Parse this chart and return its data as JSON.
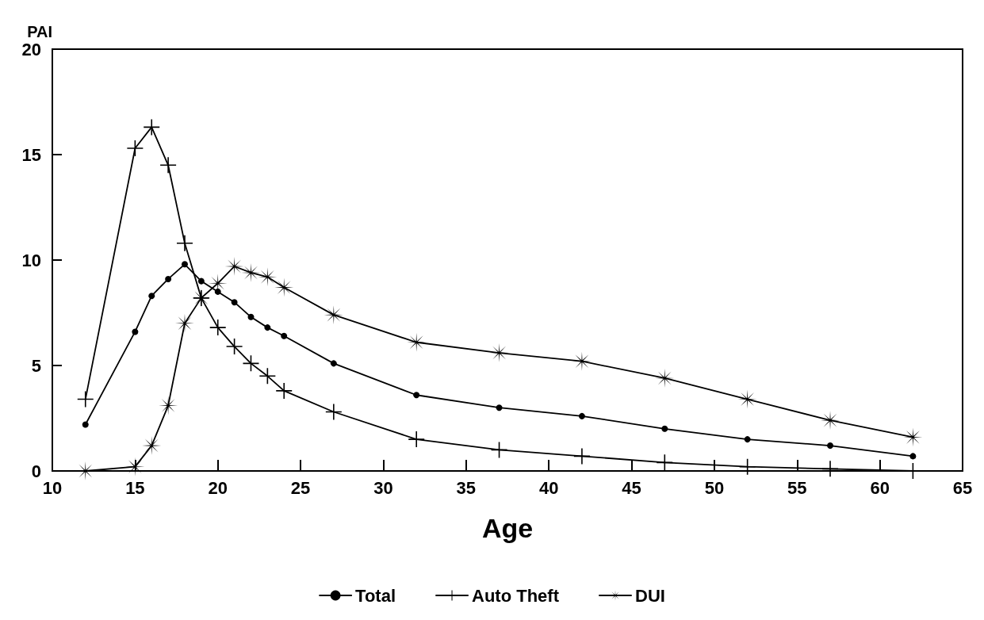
{
  "chart_data": {
    "type": "line",
    "xlabel": "Age",
    "ylabel": "PAI",
    "xlim": [
      10,
      65
    ],
    "xticks": [
      10,
      15,
      20,
      25,
      30,
      35,
      40,
      45,
      50,
      55,
      60,
      65
    ],
    "ylim": [
      0,
      20
    ],
    "yticks": [
      0,
      5,
      10,
      15,
      20
    ],
    "grid": false,
    "legend": "bottom",
    "series": [
      {
        "name": "Total",
        "color": "#000000",
        "marker": "circle",
        "x": [
          12,
          15,
          16,
          17,
          18,
          19,
          20,
          21,
          22,
          23,
          24,
          27,
          32,
          37,
          42,
          47,
          52,
          57,
          62
        ],
        "values": [
          2.2,
          6.6,
          8.3,
          9.1,
          9.8,
          9.0,
          8.5,
          8.0,
          7.3,
          6.8,
          6.4,
          5.1,
          3.6,
          3.0,
          2.6,
          2.0,
          1.5,
          1.2,
          0.7
        ]
      },
      {
        "name": "Auto Theft",
        "color": "#000000",
        "marker": "cross",
        "x": [
          12,
          15,
          16,
          17,
          18,
          19,
          20,
          21,
          22,
          23,
          24,
          27,
          32,
          37,
          42,
          47,
          52,
          57,
          62
        ],
        "values": [
          3.4,
          15.3,
          16.3,
          14.5,
          10.8,
          8.2,
          6.8,
          5.9,
          5.1,
          4.5,
          3.8,
          2.8,
          1.5,
          1.0,
          0.7,
          0.4,
          0.2,
          0.1,
          0.0
        ]
      },
      {
        "name": "DUI",
        "color": "#000000",
        "marker": "star",
        "x": [
          12,
          15,
          16,
          17,
          18,
          19,
          20,
          21,
          22,
          23,
          24,
          27,
          32,
          37,
          42,
          47,
          52,
          57,
          62
        ],
        "values": [
          0.0,
          0.2,
          1.2,
          3.1,
          7.0,
          8.2,
          8.9,
          9.7,
          9.4,
          9.2,
          8.7,
          7.4,
          6.1,
          5.6,
          5.2,
          4.4,
          3.4,
          2.4,
          1.6
        ]
      }
    ]
  }
}
